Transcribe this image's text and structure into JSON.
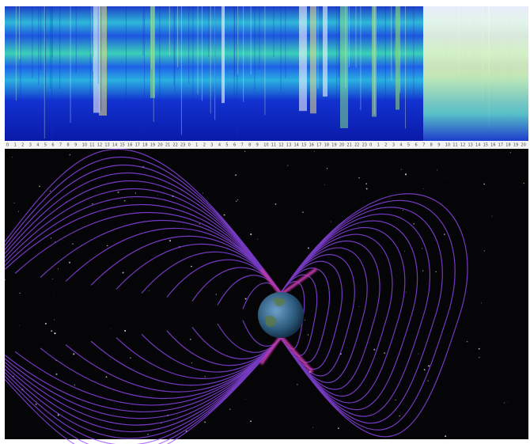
{
  "timeline": {
    "hour_labels": [
      "0",
      "1",
      "2",
      "3",
      "4",
      "5",
      "6",
      "7",
      "8",
      "9",
      "10",
      "11",
      "12",
      "13",
      "14",
      "15",
      "16",
      "17",
      "18",
      "19",
      "20",
      "21",
      "22",
      "23",
      "0",
      "1",
      "2",
      "3",
      "4",
      "5",
      "6",
      "7",
      "8",
      "9",
      "10",
      "11",
      "12",
      "13",
      "14",
      "15",
      "16",
      "17",
      "18",
      "19",
      "20",
      "21",
      "22",
      "23",
      "0",
      "1",
      "2",
      "3",
      "4",
      "5",
      "6",
      "7",
      "8",
      "9",
      "10",
      "11",
      "12",
      "13",
      "14",
      "15",
      "16",
      "17",
      "18",
      "19",
      "20"
    ]
  }
}
